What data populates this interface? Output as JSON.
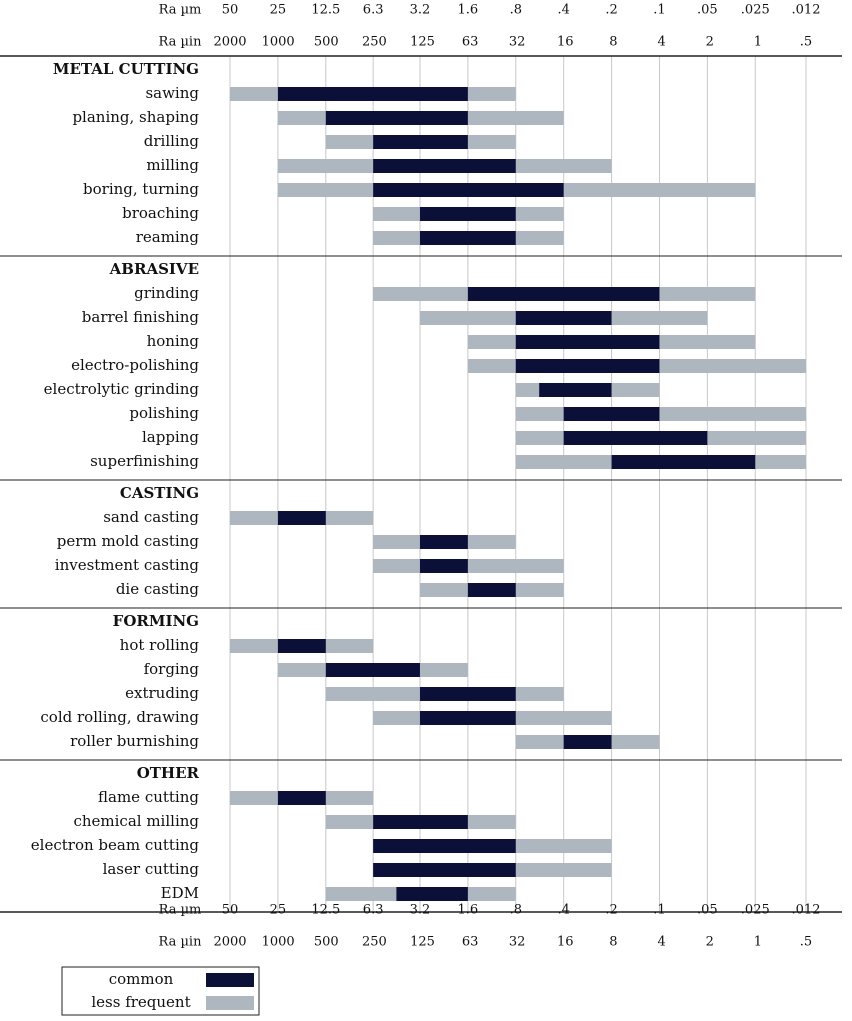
{
  "chart_data": {
    "type": "range_bar",
    "x_label": "Ra µm",
    "x2_label": "Ra µin",
    "log_x": true,
    "grid": true,
    "xlim": [
      50,
      0.012
    ],
    "xticks": [
      50,
      25,
      12.5,
      6.3,
      3.2,
      1.6,
      {
        "value": 0.8,
        "label": ".8"
      },
      {
        "value": 0.4,
        "label": ".4"
      },
      {
        "value": 0.2,
        "label": ".2"
      },
      {
        "value": 0.1,
        "label": ".1"
      },
      {
        "value": 0.05,
        "label": ".05"
      },
      {
        "value": 0.025,
        "label": ".025"
      },
      {
        "value": 0.012,
        "label": ".012"
      }
    ],
    "x2lim": [
      2000,
      0.5
    ],
    "x2ticks": [
      2000,
      1000,
      500,
      250,
      125,
      63,
      32,
      16,
      8,
      4,
      2,
      1,
      {
        "value": 0.5,
        "label": ".5"
      }
    ],
    "legend": [
      {
        "name": "common",
        "color": "#0b1038"
      },
      {
        "name": "less frequent",
        "color": "#aeb6c0"
      }
    ],
    "legend_position": "bottom-left",
    "groups": [
      {
        "name": "METAL CUTTING",
        "processes": [
          {
            "name": "sawing",
            "ranges": [
              [
                25,
                1.6
              ],
              [
                50,
                0.8
              ]
            ]
          },
          {
            "name": "planing, shaping",
            "ranges": [
              [
                12.5,
                1.6
              ],
              [
                25,
                0.4
              ]
            ]
          },
          {
            "name": "drilling",
            "ranges": [
              [
                6.3,
                1.6
              ],
              [
                12.5,
                0.8
              ]
            ]
          },
          {
            "name": "milling",
            "ranges": [
              [
                6.3,
                0.8
              ],
              [
                25,
                0.2
              ]
            ]
          },
          {
            "name": "boring, turning",
            "ranges": [
              [
                6.3,
                0.4
              ],
              [
                25,
                0.025
              ]
            ]
          },
          {
            "name": "broaching",
            "ranges": [
              [
                3.2,
                0.8
              ],
              [
                6.3,
                0.4
              ]
            ]
          },
          {
            "name": "reaming",
            "ranges": [
              [
                3.2,
                0.8
              ],
              [
                6.3,
                0.4
              ]
            ]
          }
        ]
      },
      {
        "name": "ABRASIVE",
        "processes": [
          {
            "name": "grinding",
            "ranges": [
              [
                1.6,
                0.1
              ],
              [
                6.3,
                0.025
              ]
            ]
          },
          {
            "name": "barrel finishing",
            "ranges": [
              [
                0.8,
                0.2
              ],
              [
                3.2,
                0.05
              ]
            ]
          },
          {
            "name": "honing",
            "ranges": [
              [
                0.8,
                0.1
              ],
              [
                1.6,
                0.025
              ]
            ]
          },
          {
            "name": "electro-polishing",
            "ranges": [
              [
                0.8,
                0.1
              ],
              [
                1.6,
                0.012
              ]
            ]
          },
          {
            "name": "electrolytic grinding",
            "ranges": [
              [
                0.57,
                0.2
              ],
              [
                0.8,
                0.1
              ]
            ]
          },
          {
            "name": "polishing",
            "ranges": [
              [
                0.4,
                0.1
              ],
              [
                0.8,
                0.012
              ]
            ]
          },
          {
            "name": "lapping",
            "ranges": [
              [
                0.4,
                0.05
              ],
              [
                0.8,
                0.012
              ]
            ]
          },
          {
            "name": "superfinishing",
            "ranges": [
              [
                0.2,
                0.025
              ],
              [
                0.8,
                0.012
              ]
            ]
          }
        ]
      },
      {
        "name": "CASTING",
        "processes": [
          {
            "name": "sand casting",
            "ranges": [
              [
                25,
                12.5
              ],
              [
                50,
                6.3
              ]
            ]
          },
          {
            "name": "perm mold casting",
            "ranges": [
              [
                3.2,
                1.6
              ],
              [
                6.3,
                0.8
              ]
            ]
          },
          {
            "name": "investment casting",
            "ranges": [
              [
                3.2,
                1.6
              ],
              [
                6.3,
                0.4
              ]
            ]
          },
          {
            "name": "die casting",
            "ranges": [
              [
                1.6,
                0.8
              ],
              [
                3.2,
                0.4
              ]
            ]
          }
        ]
      },
      {
        "name": "FORMING",
        "processes": [
          {
            "name": "hot rolling",
            "ranges": [
              [
                25,
                12.5
              ],
              [
                50,
                6.3
              ]
            ]
          },
          {
            "name": "forging",
            "ranges": [
              [
                12.5,
                3.2
              ],
              [
                25,
                1.6
              ]
            ]
          },
          {
            "name": "extruding",
            "ranges": [
              [
                3.2,
                0.8
              ],
              [
                12.5,
                0.4
              ]
            ]
          },
          {
            "name": "cold rolling, drawing",
            "ranges": [
              [
                3.2,
                0.8
              ],
              [
                6.3,
                0.2
              ]
            ]
          },
          {
            "name": "roller burnishing",
            "ranges": [
              [
                0.4,
                0.2
              ],
              [
                0.8,
                0.1
              ]
            ]
          }
        ]
      },
      {
        "name": "OTHER",
        "processes": [
          {
            "name": "flame cutting",
            "ranges": [
              [
                25,
                12.5
              ],
              [
                50,
                6.3
              ]
            ]
          },
          {
            "name": "chemical milling",
            "ranges": [
              [
                6.3,
                1.6
              ],
              [
                12.5,
                0.8
              ]
            ]
          },
          {
            "name": "electron beam cutting",
            "ranges": [
              [
                6.3,
                0.8
              ],
              [
                6.3,
                0.2
              ]
            ]
          },
          {
            "name": "laser cutting",
            "ranges": [
              [
                6.3,
                0.8
              ],
              [
                6.3,
                0.2
              ]
            ]
          },
          {
            "name": "EDM",
            "ranges": [
              [
                4.5,
                1.6
              ],
              [
                12.5,
                0.8
              ]
            ]
          }
        ]
      }
    ]
  }
}
